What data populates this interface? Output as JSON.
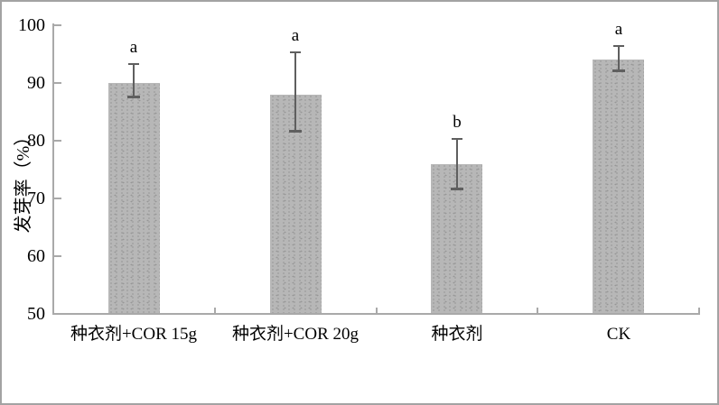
{
  "chart_data": {
    "type": "bar",
    "categories": [
      "种衣剂+COR 15g",
      "种衣剂+COR 20g",
      "种衣剂",
      "CK"
    ],
    "values": [
      90,
      88,
      76,
      94
    ],
    "error_high": [
      93.5,
      95.5,
      80.5,
      96.5
    ],
    "error_low": [
      87.5,
      81.5,
      71.5,
      92
    ],
    "sig_letters": [
      "a",
      "a",
      "b",
      "a"
    ],
    "title": "",
    "xlabel": "",
    "ylabel": "发芽率（%）",
    "ylim": [
      50,
      100
    ],
    "yticks": [
      50,
      60,
      70,
      80,
      90,
      100
    ],
    "grid": false,
    "legend": false,
    "bar_color": "#b7b7b7",
    "bar_dot_color": "#979797",
    "axis_color": "#a9a9a9",
    "error_bar_color": "#5f5f5f",
    "text_color": "#000000",
    "figure_border_color": "#a3a3a3",
    "background_color": "#ffffff"
  }
}
